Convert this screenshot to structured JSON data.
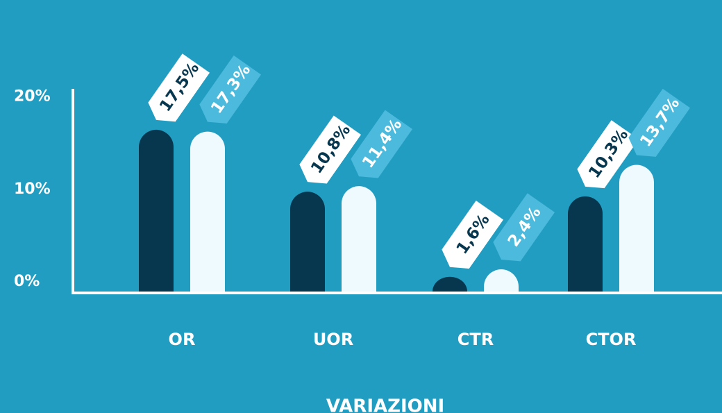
{
  "chart_data": {
    "type": "bar",
    "title": "VARIAZIONI",
    "categories": [
      "OR",
      "UOR",
      "CTR",
      "CTOR"
    ],
    "series": [
      {
        "color": "#07374f",
        "values": [
          17.5,
          10.8,
          1.6,
          10.3
        ],
        "value_labels": [
          "17,5%",
          "10,8%",
          "1,6%",
          "10,3%"
        ]
      },
      {
        "color": "#eefafd",
        "values": [
          17.3,
          11.4,
          2.4,
          13.7
        ],
        "value_labels": [
          "17,3%",
          "11,4%",
          "2,4%",
          "13,7%"
        ]
      }
    ],
    "ylim": [
      0,
      22
    ],
    "yticks": [
      {
        "value": 0,
        "label": "0%"
      },
      {
        "value": 10,
        "label": "10%"
      },
      {
        "value": 20,
        "label": "20%"
      }
    ],
    "grid": false
  }
}
